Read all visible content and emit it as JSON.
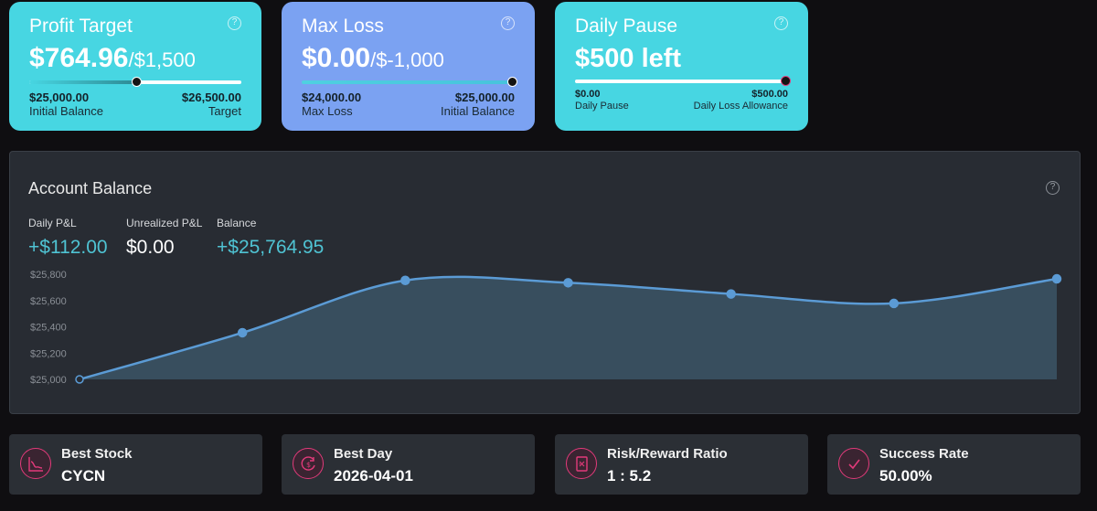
{
  "profit_target": {
    "title": "Profit Target",
    "value": "$764.96",
    "target": "/$1,500",
    "progress": 0.51,
    "left_amount": "$25,000.00",
    "left_label": "Initial Balance",
    "right_amount": "$26,500.00",
    "right_label": "Target",
    "color": "#47d6e2"
  },
  "max_loss": {
    "title": "Max Loss",
    "value": "$0.00",
    "limit": "/$-1,000",
    "progress": 1.0,
    "left_amount": "$24,000.00",
    "left_label": "Max Loss",
    "right_amount": "$25,000.00",
    "right_label": "Initial Balance",
    "color": "#7ba2f2"
  },
  "daily_pause": {
    "title": "Daily Pause",
    "value": "$500 left",
    "progress": 1.0,
    "left_amount": "$0.00",
    "left_label": "Daily Pause",
    "right_amount": "$500.00",
    "right_label": "Daily Loss Allowance",
    "color": "#47d6e2"
  },
  "help_glyph": "?",
  "account_balance": {
    "title": "Account Balance",
    "stats": [
      {
        "label": "Daily P&L",
        "value": "+$112.00",
        "color": "#4fc3d3"
      },
      {
        "label": "Unrealized P&L",
        "value": "$0.00",
        "color": "#ffffff"
      },
      {
        "label": "Balance",
        "value": "+$25,764.95",
        "color": "#4fc3d3"
      }
    ]
  },
  "chart_data": {
    "type": "area",
    "y_ticks": [
      "$25,000",
      "$25,200",
      "$25,400",
      "$25,600",
      "$25,800"
    ],
    "ylim": [
      25000,
      25800
    ],
    "values": [
      25000,
      25355,
      25753,
      25735,
      25650,
      25578,
      25765
    ],
    "line_color": "#5b9bd5",
    "fill_color": "#3b5566"
  },
  "summary": [
    {
      "label": "Best Stock",
      "value": "CYCN",
      "icon": "stock-chart-icon"
    },
    {
      "label": "Best Day",
      "value": "2026-04-01",
      "icon": "dollar-cycle-icon"
    },
    {
      "label": "Risk/Reward Ratio",
      "value": "1 : 5.2",
      "icon": "calculator-icon"
    },
    {
      "label": "Success Rate",
      "value": "50.00%",
      "icon": "checkmark-icon"
    }
  ],
  "accent_color": "#e23a7a"
}
